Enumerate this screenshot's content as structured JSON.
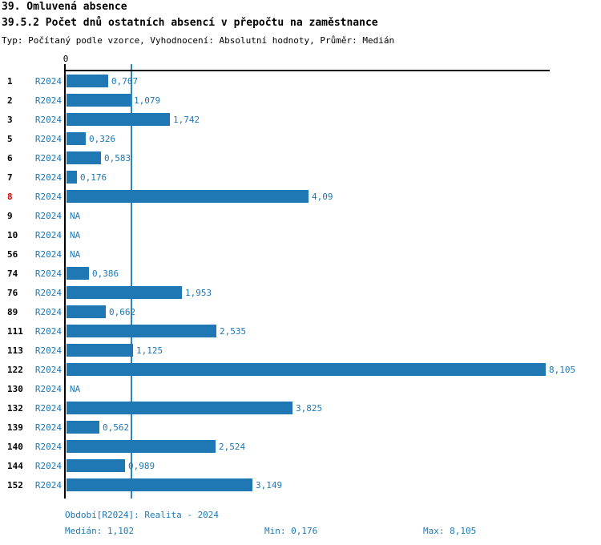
{
  "header": {
    "title": "39. Omluvená absence",
    "subtitle": "39.5.2 Počet dnů ostatních absencí v přepočtu na zaměstnance",
    "meta": "Typ: Počítaný podle vzorce, Vyhodnocení: Absolutní hodnoty, Průměr: Medián"
  },
  "chart_data": {
    "type": "bar",
    "orientation": "horizontal",
    "title": "39.5.2 Počet dnů ostatních absencí v přepočtu na zaměstnance",
    "xlabel": "",
    "ylabel": "",
    "xlim": [
      0,
      8.105
    ],
    "zero_tick_label": "0",
    "series_label": "R2024",
    "categories": [
      "1",
      "2",
      "3",
      "5",
      "6",
      "7",
      "8",
      "9",
      "10",
      "56",
      "74",
      "76",
      "89",
      "111",
      "113",
      "122",
      "130",
      "132",
      "139",
      "140",
      "144",
      "152"
    ],
    "values": [
      0.707,
      1.079,
      1.742,
      0.326,
      0.583,
      0.176,
      4.09,
      null,
      null,
      null,
      0.386,
      1.953,
      0.662,
      2.535,
      1.125,
      8.105,
      null,
      3.825,
      0.562,
      2.524,
      0.989,
      3.149
    ],
    "value_labels": [
      "0,707",
      "1,079",
      "1,742",
      "0,326",
      "0,583",
      "0,176",
      "4,09",
      "NA",
      "NA",
      "NA",
      "0,386",
      "1,953",
      "0,662",
      "2,535",
      "1,125",
      "8,105",
      "NA",
      "3,825",
      "0,562",
      "2,524",
      "0,989",
      "3,149"
    ],
    "highlighted_category": "8",
    "median_line_value": 1.102,
    "grid": false,
    "legend_position": "none",
    "bar_color": "#1f77b4",
    "label_color": "#1f77b4",
    "median_line_color": "#2e86c1",
    "highlight_color": "#dd0000"
  },
  "footer": {
    "period": "Období[R2024]: Realita - 2024",
    "median": "Medián: 1,102",
    "min": "Min: 0,176",
    "max": "Max: 8,105"
  }
}
